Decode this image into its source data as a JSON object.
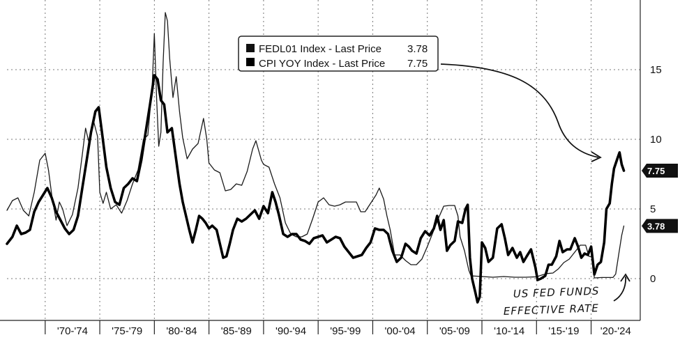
{
  "chart_data": {
    "type": "line",
    "title": "",
    "xlabel": "",
    "ylabel": "",
    "xlim": [
      1966.5,
      2024.5
    ],
    "ylim": [
      -3,
      20
    ],
    "y_ticks": [
      0,
      5,
      10,
      15
    ],
    "grid": true,
    "legend_placement": "top-center",
    "x_tick_labels": [
      "'70-'74",
      "'75-'79",
      "'80-'84",
      "'85-'89",
      "'90-'94",
      "'95-'99",
      "'00-'04",
      "'05-'09",
      "'10-'14",
      "'15-'19",
      "'20-'24"
    ],
    "series": [
      {
        "name": "FEDL01 Index - Last Price",
        "last_value": 3.78,
        "last_value_label": "3.78",
        "color": "#1a1a1a",
        "points": [
          [
            1966.5,
            4.9
          ],
          [
            1967.0,
            5.6
          ],
          [
            1967.5,
            5.8
          ],
          [
            1968.0,
            4.9
          ],
          [
            1968.5,
            4.5
          ],
          [
            1969.0,
            6.2
          ],
          [
            1969.5,
            8.5
          ],
          [
            1970.0,
            9.0
          ],
          [
            1970.3,
            7.8
          ],
          [
            1970.6,
            6.0
          ],
          [
            1971.0,
            4.2
          ],
          [
            1971.3,
            5.5
          ],
          [
            1971.6,
            5.0
          ],
          [
            1972.0,
            3.8
          ],
          [
            1972.5,
            4.6
          ],
          [
            1973.0,
            6.5
          ],
          [
            1973.4,
            8.9
          ],
          [
            1973.7,
            10.8
          ],
          [
            1974.0,
            9.8
          ],
          [
            1974.4,
            11.4
          ],
          [
            1974.8,
            10.2
          ],
          [
            1975.0,
            6.2
          ],
          [
            1975.3,
            5.4
          ],
          [
            1975.6,
            6.2
          ],
          [
            1976.0,
            5.0
          ],
          [
            1976.5,
            5.3
          ],
          [
            1977.0,
            4.7
          ],
          [
            1977.5,
            5.6
          ],
          [
            1978.0,
            6.8
          ],
          [
            1978.5,
            7.8
          ],
          [
            1979.0,
            10.0
          ],
          [
            1979.4,
            10.3
          ],
          [
            1979.8,
            13.8
          ],
          [
            1980.0,
            17.6
          ],
          [
            1980.2,
            13.0
          ],
          [
            1980.4,
            9.5
          ],
          [
            1980.6,
            10.5
          ],
          [
            1980.8,
            15.5
          ],
          [
            1981.0,
            19.1
          ],
          [
            1981.2,
            18.5
          ],
          [
            1981.4,
            15.8
          ],
          [
            1981.7,
            13.0
          ],
          [
            1982.0,
            14.5
          ],
          [
            1982.3,
            12.0
          ],
          [
            1982.6,
            10.1
          ],
          [
            1983.0,
            8.6
          ],
          [
            1983.5,
            9.3
          ],
          [
            1984.0,
            9.7
          ],
          [
            1984.5,
            11.5
          ],
          [
            1984.8,
            10.0
          ],
          [
            1985.0,
            8.3
          ],
          [
            1985.5,
            7.8
          ],
          [
            1986.0,
            7.6
          ],
          [
            1986.5,
            6.3
          ],
          [
            1987.0,
            6.4
          ],
          [
            1987.5,
            6.8
          ],
          [
            1988.0,
            6.7
          ],
          [
            1988.5,
            7.7
          ],
          [
            1989.0,
            9.3
          ],
          [
            1989.3,
            9.9
          ],
          [
            1989.8,
            8.5
          ],
          [
            1990.0,
            8.2
          ],
          [
            1990.5,
            8.0
          ],
          [
            1991.0,
            6.8
          ],
          [
            1991.5,
            5.8
          ],
          [
            1992.0,
            4.0
          ],
          [
            1992.5,
            3.2
          ],
          [
            1993.0,
            3.0
          ],
          [
            1993.5,
            3.0
          ],
          [
            1994.0,
            3.2
          ],
          [
            1994.5,
            4.3
          ],
          [
            1995.0,
            5.5
          ],
          [
            1995.5,
            5.8
          ],
          [
            1996.0,
            5.3
          ],
          [
            1996.5,
            5.2
          ],
          [
            1997.0,
            5.3
          ],
          [
            1997.5,
            5.5
          ],
          [
            1998.0,
            5.5
          ],
          [
            1998.5,
            5.5
          ],
          [
            1998.9,
            4.8
          ],
          [
            1999.3,
            4.8
          ],
          [
            1999.8,
            5.4
          ],
          [
            2000.3,
            6.0
          ],
          [
            2000.6,
            6.5
          ],
          [
            2001.0,
            5.7
          ],
          [
            2001.3,
            4.5
          ],
          [
            2001.6,
            3.5
          ],
          [
            2002.0,
            1.7
          ],
          [
            2002.5,
            1.7
          ],
          [
            2003.0,
            1.3
          ],
          [
            2003.5,
            1.0
          ],
          [
            2004.0,
            1.0
          ],
          [
            2004.5,
            1.4
          ],
          [
            2005.0,
            2.3
          ],
          [
            2005.5,
            3.3
          ],
          [
            2006.0,
            4.3
          ],
          [
            2006.5,
            5.2
          ],
          [
            2007.0,
            5.25
          ],
          [
            2007.5,
            5.25
          ],
          [
            2007.8,
            4.5
          ],
          [
            2008.0,
            3.0
          ],
          [
            2008.4,
            2.0
          ],
          [
            2008.8,
            0.6
          ],
          [
            2009.0,
            0.2
          ],
          [
            2010.0,
            0.15
          ],
          [
            2011.0,
            0.1
          ],
          [
            2012.0,
            0.15
          ],
          [
            2013.0,
            0.1
          ],
          [
            2014.0,
            0.1
          ],
          [
            2015.0,
            0.13
          ],
          [
            2015.9,
            0.36
          ],
          [
            2016.5,
            0.4
          ],
          [
            2017.0,
            0.7
          ],
          [
            2017.5,
            1.15
          ],
          [
            2018.0,
            1.4
          ],
          [
            2018.5,
            1.9
          ],
          [
            2019.0,
            2.4
          ],
          [
            2019.5,
            2.4
          ],
          [
            2019.8,
            1.6
          ],
          [
            2020.1,
            1.55
          ],
          [
            2020.3,
            0.05
          ],
          [
            2021.0,
            0.08
          ],
          [
            2021.8,
            0.08
          ],
          [
            2022.0,
            0.08
          ],
          [
            2022.25,
            0.33
          ],
          [
            2022.5,
            1.6
          ],
          [
            2022.8,
            3.1
          ],
          [
            2023.0,
            3.78
          ]
        ]
      },
      {
        "name": "CPI YOY Index - Last Price",
        "last_value": 7.75,
        "last_value_label": "7.75",
        "color": "#000000",
        "points": [
          [
            1966.5,
            2.5
          ],
          [
            1967.0,
            3.0
          ],
          [
            1967.4,
            3.8
          ],
          [
            1967.8,
            3.2
          ],
          [
            1968.2,
            3.3
          ],
          [
            1968.6,
            3.5
          ],
          [
            1969.0,
            4.8
          ],
          [
            1969.4,
            5.5
          ],
          [
            1969.8,
            6.0
          ],
          [
            1970.2,
            6.5
          ],
          [
            1970.6,
            5.8
          ],
          [
            1971.0,
            4.8
          ],
          [
            1971.4,
            4.2
          ],
          [
            1971.8,
            3.6
          ],
          [
            1972.2,
            3.2
          ],
          [
            1972.6,
            3.5
          ],
          [
            1973.0,
            4.5
          ],
          [
            1973.4,
            6.5
          ],
          [
            1973.8,
            8.5
          ],
          [
            1974.2,
            10.5
          ],
          [
            1974.6,
            12.0
          ],
          [
            1974.9,
            12.3
          ],
          [
            1975.2,
            10.5
          ],
          [
            1975.6,
            8.0
          ],
          [
            1976.0,
            6.5
          ],
          [
            1976.4,
            5.5
          ],
          [
            1976.8,
            5.3
          ],
          [
            1977.2,
            6.5
          ],
          [
            1977.6,
            6.8
          ],
          [
            1978.0,
            7.2
          ],
          [
            1978.4,
            7.0
          ],
          [
            1978.8,
            8.5
          ],
          [
            1979.2,
            10.5
          ],
          [
            1979.6,
            12.5
          ],
          [
            1980.0,
            14.6
          ],
          [
            1980.3,
            14.3
          ],
          [
            1980.6,
            12.8
          ],
          [
            1980.9,
            12.5
          ],
          [
            1981.2,
            10.5
          ],
          [
            1981.6,
            10.8
          ],
          [
            1982.0,
            8.5
          ],
          [
            1982.3,
            6.8
          ],
          [
            1982.6,
            5.5
          ],
          [
            1982.9,
            4.5
          ],
          [
            1983.2,
            3.5
          ],
          [
            1983.5,
            2.6
          ],
          [
            1983.8,
            3.5
          ],
          [
            1984.1,
            4.5
          ],
          [
            1984.4,
            4.3
          ],
          [
            1984.7,
            4.0
          ],
          [
            1985.0,
            3.6
          ],
          [
            1985.3,
            3.8
          ],
          [
            1985.7,
            3.5
          ],
          [
            1986.0,
            2.5
          ],
          [
            1986.3,
            1.5
          ],
          [
            1986.6,
            1.6
          ],
          [
            1986.9,
            2.5
          ],
          [
            1987.2,
            3.5
          ],
          [
            1987.6,
            4.3
          ],
          [
            1988.0,
            4.1
          ],
          [
            1988.4,
            4.3
          ],
          [
            1988.8,
            4.6
          ],
          [
            1989.2,
            4.9
          ],
          [
            1989.6,
            4.3
          ],
          [
            1990.0,
            5.2
          ],
          [
            1990.4,
            4.7
          ],
          [
            1990.8,
            6.2
          ],
          [
            1991.1,
            5.5
          ],
          [
            1991.4,
            4.6
          ],
          [
            1991.8,
            3.2
          ],
          [
            1992.2,
            3.0
          ],
          [
            1992.6,
            3.2
          ],
          [
            1993.0,
            3.2
          ],
          [
            1993.4,
            2.8
          ],
          [
            1993.8,
            2.7
          ],
          [
            1994.2,
            2.5
          ],
          [
            1994.6,
            2.9
          ],
          [
            1995.0,
            3.0
          ],
          [
            1995.4,
            3.1
          ],
          [
            1995.8,
            2.6
          ],
          [
            1996.2,
            2.8
          ],
          [
            1996.6,
            3.0
          ],
          [
            1997.0,
            2.9
          ],
          [
            1997.4,
            2.3
          ],
          [
            1997.8,
            1.9
          ],
          [
            1998.2,
            1.5
          ],
          [
            1998.6,
            1.6
          ],
          [
            1999.0,
            1.7
          ],
          [
            1999.4,
            2.2
          ],
          [
            1999.8,
            2.6
          ],
          [
            2000.2,
            3.6
          ],
          [
            2000.6,
            3.5
          ],
          [
            2001.0,
            3.5
          ],
          [
            2001.4,
            3.2
          ],
          [
            2001.8,
            2.0
          ],
          [
            2002.2,
            1.2
          ],
          [
            2002.6,
            1.5
          ],
          [
            2003.0,
            2.5
          ],
          [
            2003.3,
            2.3
          ],
          [
            2003.6,
            2.0
          ],
          [
            2004.0,
            1.8
          ],
          [
            2004.4,
            2.9
          ],
          [
            2004.8,
            3.4
          ],
          [
            2005.2,
            3.1
          ],
          [
            2005.6,
            3.6
          ],
          [
            2005.9,
            4.5
          ],
          [
            2006.2,
            3.5
          ],
          [
            2006.5,
            4.2
          ],
          [
            2006.8,
            2.0
          ],
          [
            2007.1,
            2.4
          ],
          [
            2007.5,
            2.7
          ],
          [
            2007.8,
            4.1
          ],
          [
            2008.2,
            4.0
          ],
          [
            2008.5,
            5.0
          ],
          [
            2008.7,
            5.3
          ],
          [
            2008.9,
            1.5
          ],
          [
            2009.1,
            0.0
          ],
          [
            2009.4,
            -1.0
          ],
          [
            2009.6,
            -1.7
          ],
          [
            2009.8,
            -1.3
          ],
          [
            2010.0,
            2.6
          ],
          [
            2010.3,
            2.2
          ],
          [
            2010.6,
            1.2
          ],
          [
            2011.0,
            1.5
          ],
          [
            2011.4,
            3.6
          ],
          [
            2011.8,
            3.9
          ],
          [
            2012.1,
            2.9
          ],
          [
            2012.4,
            1.7
          ],
          [
            2012.8,
            2.2
          ],
          [
            2013.2,
            1.5
          ],
          [
            2013.5,
            1.9
          ],
          [
            2013.8,
            1.2
          ],
          [
            2014.1,
            1.6
          ],
          [
            2014.5,
            2.1
          ],
          [
            2014.9,
            0.8
          ],
          [
            2015.1,
            -0.1
          ],
          [
            2015.4,
            0.0
          ],
          [
            2015.8,
            0.2
          ],
          [
            2016.1,
            1.0
          ],
          [
            2016.4,
            1.0
          ],
          [
            2016.8,
            1.6
          ],
          [
            2017.1,
            2.7
          ],
          [
            2017.4,
            1.9
          ],
          [
            2017.8,
            2.1
          ],
          [
            2018.1,
            2.1
          ],
          [
            2018.5,
            2.9
          ],
          [
            2018.8,
            2.3
          ],
          [
            2019.1,
            1.5
          ],
          [
            2019.4,
            1.8
          ],
          [
            2019.7,
            1.7
          ],
          [
            2020.0,
            2.3
          ],
          [
            2020.3,
            0.3
          ],
          [
            2020.6,
            1.0
          ],
          [
            2020.9,
            1.2
          ],
          [
            2021.2,
            2.6
          ],
          [
            2021.4,
            5.0
          ],
          [
            2021.7,
            5.4
          ],
          [
            2021.9,
            6.8
          ],
          [
            2022.1,
            7.9
          ],
          [
            2022.4,
            8.6
          ],
          [
            2022.6,
            9.06
          ],
          [
            2022.8,
            8.2
          ],
          [
            2023.0,
            7.75
          ]
        ]
      }
    ],
    "annotations": [
      {
        "text": "US FED FUNDS",
        "target_series": "FEDL01 Index - Last Price"
      },
      {
        "text": "EFFECTIVE RATE",
        "target_series": "FEDL01 Index - Last Price"
      }
    ]
  }
}
